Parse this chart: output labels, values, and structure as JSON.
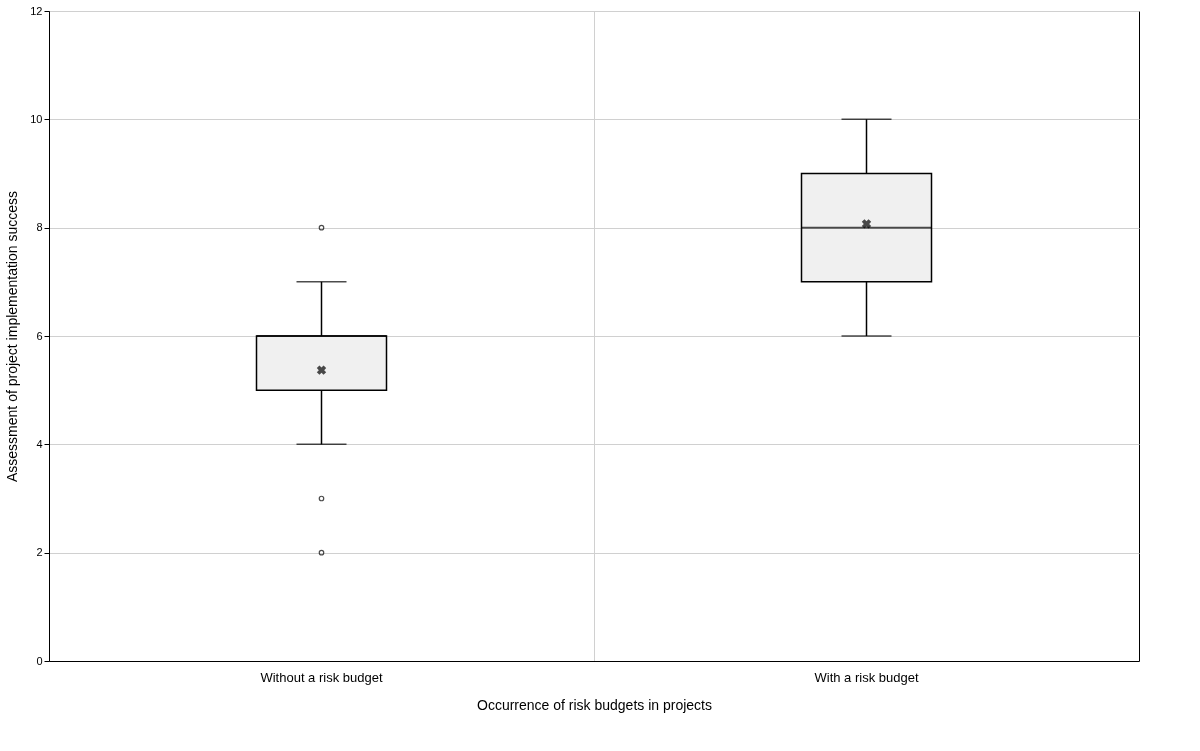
{
  "chart_data": {
    "type": "box",
    "xlabel": "Occurrence of risk budgets in projects",
    "ylabel": "Assessment of project implementation success",
    "categories": [
      "Without a risk budget",
      "With a risk budget"
    ],
    "boxes": [
      {
        "low": 4,
        "q1": 5,
        "median": 6,
        "q3": 6,
        "high": 7,
        "mean": 5.37,
        "outliers": [
          8,
          3,
          2
        ]
      },
      {
        "low": 6,
        "q1": 7,
        "median": 8,
        "q3": 9,
        "high": 10,
        "mean": 8.07
      }
    ],
    "color": "#f0f0f0",
    "ylim": [
      0,
      12
    ],
    "yticks": [
      0,
      2,
      4,
      6,
      8,
      10,
      12
    ],
    "grid": true
  }
}
